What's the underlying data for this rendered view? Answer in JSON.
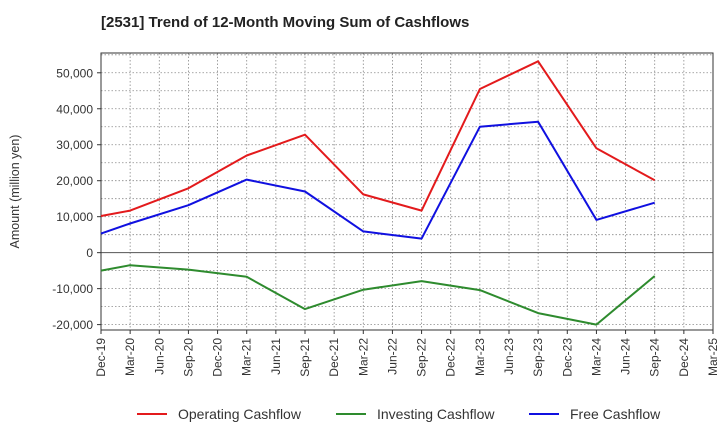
{
  "chart_data": {
    "type": "line",
    "title": "[2531]  Trend of 12-Month Moving Sum of Cashflows",
    "xlabel": "",
    "ylabel": "Amount (million yen)",
    "categories": [
      "Dec-19",
      "Mar-20",
      "Jun-20",
      "Sep-20",
      "Dec-20",
      "Mar-21",
      "Jun-21",
      "Sep-21",
      "Dec-21",
      "Mar-22",
      "Jun-22",
      "Sep-22",
      "Dec-22",
      "Mar-23",
      "Jun-23",
      "Sep-23",
      "Dec-23",
      "Mar-24",
      "Jun-24",
      "Sep-24",
      "Dec-24",
      "Mar-25"
    ],
    "y_ticks": [
      -20000,
      -10000,
      0,
      10000,
      20000,
      30000,
      40000,
      50000
    ],
    "y_tick_labels": [
      "-20,000",
      "-10,000",
      "0",
      "10,000",
      "20,000",
      "30,000",
      "40,000",
      "50,000"
    ],
    "ylim": [
      -21500,
      55500
    ],
    "grid": true,
    "legend_position": "bottom",
    "series": [
      {
        "name": "Operating Cashflow",
        "color": "#e31a1c",
        "values": [
          10200,
          11700,
          null,
          17900,
          null,
          27000,
          null,
          32800,
          null,
          16200,
          null,
          11700,
          null,
          45500,
          null,
          53200,
          null,
          29000,
          null,
          20100,
          null,
          null
        ]
      },
      {
        "name": "Investing Cashflow",
        "color": "#2e8b2e",
        "values": [
          -5000,
          -3500,
          null,
          -4700,
          null,
          -6700,
          null,
          -15700,
          null,
          -10300,
          null,
          -7900,
          null,
          -10400,
          null,
          -16800,
          null,
          -20000,
          null,
          -6500,
          null,
          null
        ]
      },
      {
        "name": "Free Cashflow",
        "color": "#1010e0",
        "values": [
          5300,
          8100,
          null,
          13200,
          null,
          20300,
          null,
          17000,
          null,
          5900,
          null,
          3900,
          null,
          35000,
          null,
          36400,
          null,
          9100,
          null,
          13900,
          null,
          null
        ]
      }
    ]
  }
}
